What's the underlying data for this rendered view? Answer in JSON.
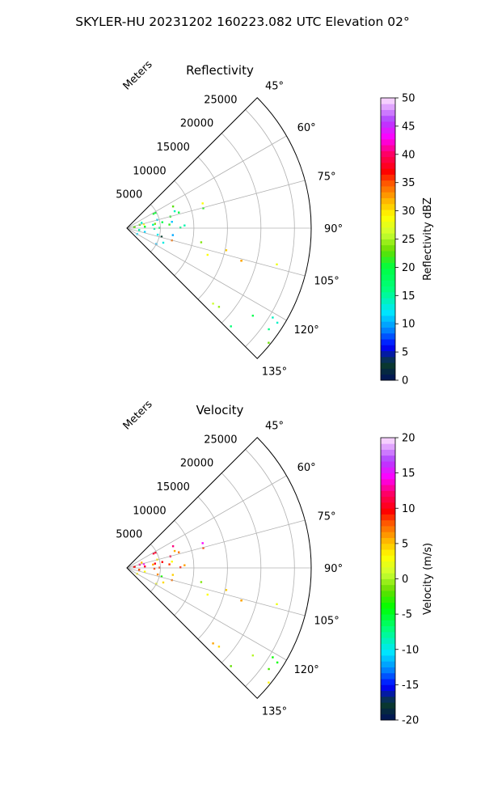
{
  "figure_title": "SKYLER-HU  20231202  160223.082 UTC Elevation 02°",
  "chart_data": [
    {
      "type": "heatmap",
      "title": "Reflectivity",
      "projection": "polar sector",
      "theta_range_deg": [
        45,
        135
      ],
      "theta_ticks": [
        "45°",
        "60°",
        "75°",
        "90°",
        "105°",
        "120°",
        "135°"
      ],
      "r_label": "Meters",
      "r_ticks": [
        "5000",
        "10000",
        "15000",
        "20000",
        "25000"
      ],
      "r_max": 27500,
      "colorbar": {
        "label": "Reflectivity dBZ",
        "ticks": [
          "0",
          "5",
          "10",
          "15",
          "20",
          "25",
          "30",
          "35",
          "40",
          "45",
          "50"
        ],
        "range": [
          0,
          50
        ]
      },
      "echo_regions": [
        {
          "theta": [
            57,
            92
          ],
          "r": [
            500,
            9000
          ],
          "value": 17
        },
        {
          "theta": [
            70,
            86
          ],
          "r": [
            500,
            12000
          ],
          "value": 22
        },
        {
          "theta": [
            88,
            102
          ],
          "r": [
            1000,
            9500
          ],
          "value": 13
        },
        {
          "theta": [
            98,
            118
          ],
          "r": [
            1000,
            6500
          ],
          "value": 10
        },
        {
          "theta": [
            100,
            108
          ],
          "r": [
            6000,
            24000
          ],
          "value": 30
        },
        {
          "theta": [
            120,
            134
          ],
          "r": [
            14000,
            27000
          ],
          "value": 20
        }
      ],
      "colors": {
        "low": "#00115a",
        "mid": "#00ff40",
        "high": "#ff0000",
        "top": "#ffe4ff"
      }
    },
    {
      "type": "heatmap",
      "title": "Velocity",
      "projection": "polar sector",
      "theta_range_deg": [
        45,
        135
      ],
      "theta_ticks": [
        "45°",
        "60°",
        "75°",
        "90°",
        "105°",
        "120°",
        "135°"
      ],
      "r_label": "Meters",
      "r_ticks": [
        "5000",
        "10000",
        "15000",
        "20000",
        "25000"
      ],
      "r_max": 27500,
      "colorbar": {
        "label": "Velocity (m/s)",
        "ticks": [
          "-20",
          "-15",
          "-10",
          "-5",
          "0",
          "5",
          "10",
          "15",
          "20"
        ],
        "range": [
          -20,
          20
        ]
      },
      "echo_regions": [
        {
          "theta": [
            57,
            92
          ],
          "r": [
            500,
            9000
          ],
          "value": 8
        },
        {
          "theta": [
            70,
            86
          ],
          "r": [
            500,
            12000
          ],
          "value": 9
        },
        {
          "theta": [
            88,
            102
          ],
          "r": [
            1000,
            9500
          ],
          "value": 7
        },
        {
          "theta": [
            98,
            118
          ],
          "r": [
            1000,
            6500
          ],
          "value": 2
        },
        {
          "theta": [
            100,
            108
          ],
          "r": [
            6000,
            24000
          ],
          "value": 4
        },
        {
          "theta": [
            120,
            134
          ],
          "r": [
            14000,
            27000
          ],
          "value": 1
        }
      ],
      "colors": {
        "low": "#00115a",
        "mid": "#ffff00",
        "high": "#ff0000",
        "top": "#ffe4ff"
      }
    }
  ]
}
